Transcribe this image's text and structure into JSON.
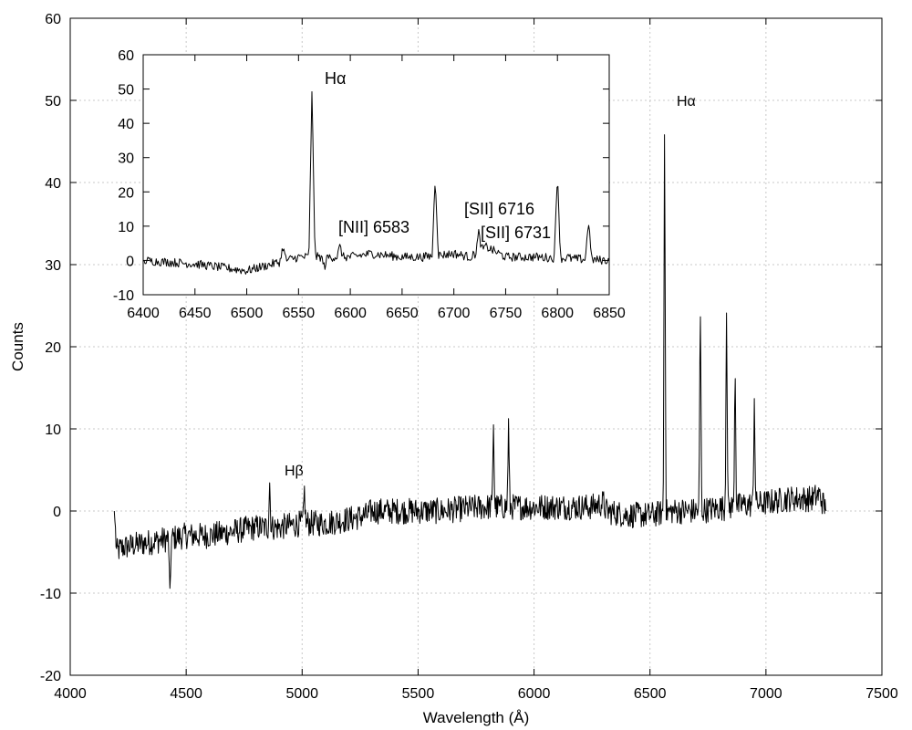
{
  "chart_data": [
    {
      "id": "main",
      "type": "line",
      "xlabel": "Wavelength (Å)",
      "ylabel": "Counts",
      "xlim": [
        4000,
        7500
      ],
      "ylim": [
        -20,
        60
      ],
      "xticks": [
        4000,
        4500,
        5000,
        5500,
        6000,
        6500,
        7000,
        7500
      ],
      "yticks": [
        -20,
        -10,
        0,
        10,
        20,
        30,
        40,
        50,
        60
      ],
      "grid": true,
      "series": [
        {
          "style": "noisy spectrum",
          "x": [
            4190,
            4200,
            4220,
            4300,
            4400,
            4430,
            4500,
            4600,
            4700,
            4800,
            4860,
            4900,
            5000,
            5010,
            5100,
            5200,
            5280,
            5300,
            5400,
            5500,
            5600,
            5700,
            5800,
            5825,
            5850,
            5890,
            5900,
            6000,
            6100,
            6200,
            6250,
            6300,
            6310,
            6400,
            6500,
            6563,
            6600,
            6700,
            6717,
            6800,
            6830,
            6850,
            6867,
            6900,
            6950,
            7000,
            7100,
            7200,
            7230,
            7260
          ],
          "y": [
            0,
            -5,
            -4.5,
            -4,
            -3.5,
            -11,
            -3,
            -3,
            -2.5,
            -2,
            3.5,
            -2,
            -1.5,
            2.5,
            -1.5,
            -1,
            -0.5,
            0,
            0,
            0,
            0,
            0.3,
            0.5,
            11,
            0.5,
            10.5,
            0.5,
            0.5,
            0.5,
            0.5,
            0.5,
            1,
            0,
            -0.5,
            -0.5,
            50,
            0,
            0,
            26,
            0.5,
            25.5,
            0.5,
            18.5,
            1,
            14,
            1,
            1.5,
            1.5,
            2,
            0
          ]
        }
      ],
      "annotations": [
        {
          "text": "Hβ",
          "x": 4860
        },
        {
          "text": "Hα",
          "x": 6563
        }
      ]
    },
    {
      "id": "inset",
      "type": "line",
      "xlim": [
        6400,
        6850
      ],
      "ylim": [
        -10,
        60
      ],
      "xticks": [
        6400,
        6450,
        6500,
        6550,
        6600,
        6650,
        6700,
        6750,
        6800,
        6850
      ],
      "yticks": [
        -10,
        0,
        10,
        20,
        30,
        40,
        50,
        60
      ],
      "series": [
        {
          "style": "noisy spectrum",
          "x": [
            6400,
            6450,
            6500,
            6535,
            6550,
            6563,
            6575,
            6590,
            6600,
            6620,
            6650,
            6670,
            6682,
            6700,
            6716,
            6724,
            6731,
            6750,
            6780,
            6800,
            6810,
            6830,
            6850
          ],
          "y": [
            0,
            -1,
            -3,
            4,
            1,
            50,
            -2,
            4,
            1,
            2,
            1,
            1,
            25,
            2,
            1,
            8,
            4,
            1,
            1,
            26,
            1,
            12,
            0
          ]
        }
      ],
      "annotations": [
        {
          "text": "Hα",
          "x": 6563
        },
        {
          "text": "[NII] 6583",
          "x": 6590
        },
        {
          "text": "[SII] 6716",
          "x": 6716
        },
        {
          "text": "[SII] 6731",
          "x": 6731
        }
      ]
    }
  ]
}
